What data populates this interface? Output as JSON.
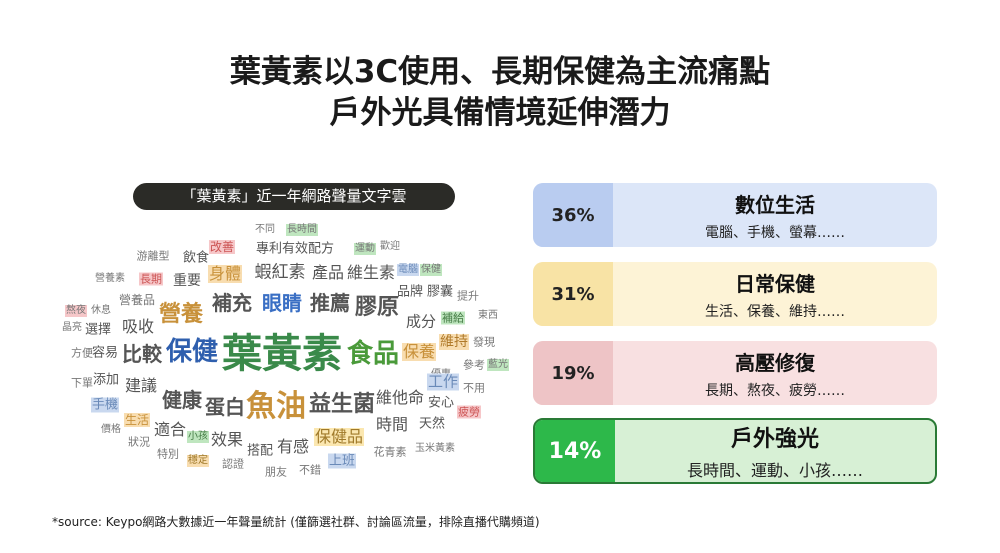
{
  "title": {
    "lines": [
      "葉黃素以3C使用、長期保健為主流痛點",
      "戶外光具備情境延伸潛力"
    ]
  },
  "word_cloud": {
    "label": "「葉黃素」近一年網路聲量文字雲",
    "words": [
      "不同",
      "長時間",
      "游離型",
      "改善",
      "專利有效配方",
      "運動",
      "歡迎",
      "飲食",
      "營養素",
      "長期",
      "重要",
      "身體",
      "蝦紅素",
      "產品",
      "維生素",
      "電腦",
      "保健",
      "品牌",
      "膠囊",
      "提升",
      "營養品",
      "補充",
      "眼睛",
      "推薦",
      "膠原",
      "熬夜",
      "休息",
      "營養",
      "補給",
      "東西",
      "晶亮",
      "選擇",
      "吸收",
      "成分",
      "發現",
      "方便",
      "容易",
      "比較",
      "保健",
      "葉黃素",
      "食品",
      "維持",
      "保養",
      "參考",
      "藍光",
      "下單",
      "添加",
      "建議",
      "優惠",
      "工作",
      "不用",
      "手機",
      "健康",
      "蛋白",
      "魚油",
      "益生菌",
      "維他命",
      "安心",
      "疲勞",
      "生活",
      "價格",
      "適合",
      "時間",
      "天然",
      "狀況",
      "小孩",
      "效果",
      "保健品",
      "搭配",
      "有感",
      "特別",
      "花青素",
      "玉米黃素",
      "穩定",
      "認證",
      "上班",
      "朋友",
      "不錯"
    ]
  },
  "cards": [
    {
      "percent": "36%",
      "title": "數位生活",
      "subtitle": "電腦、手機、螢幕……"
    },
    {
      "percent": "31%",
      "title": "日常保健",
      "subtitle": "生活、保養、維持……"
    },
    {
      "percent": "19%",
      "title": "高壓修復",
      "subtitle": "長期、熬夜、疲勞……"
    },
    {
      "percent": "14%",
      "title": "戶外強光",
      "subtitle": "長時間、運動、小孩……"
    }
  ],
  "source": "*source: Keypo網路大數據近一年聲量統計 (僅篩選社群、討論區流量，排除直播代購頻道)"
}
